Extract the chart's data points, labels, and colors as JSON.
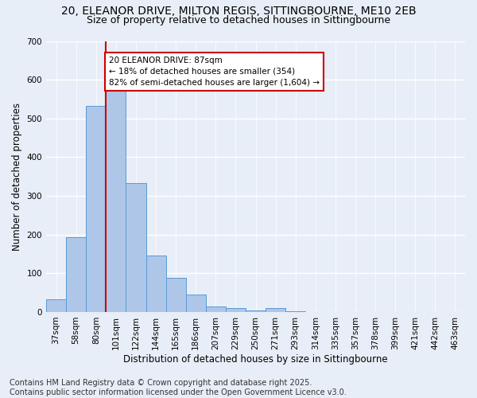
{
  "title1": "20, ELEANOR DRIVE, MILTON REGIS, SITTINGBOURNE, ME10 2EB",
  "title2": "Size of property relative to detached houses in Sittingbourne",
  "xlabel": "Distribution of detached houses by size in Sittingbourne",
  "ylabel": "Number of detached properties",
  "categories": [
    "37sqm",
    "58sqm",
    "80sqm",
    "101sqm",
    "122sqm",
    "144sqm",
    "165sqm",
    "186sqm",
    "207sqm",
    "229sqm",
    "250sqm",
    "271sqm",
    "293sqm",
    "314sqm",
    "335sqm",
    "357sqm",
    "378sqm",
    "399sqm",
    "421sqm",
    "442sqm",
    "463sqm"
  ],
  "values": [
    33,
    193,
    533,
    575,
    333,
    145,
    88,
    45,
    14,
    10,
    4,
    10,
    2,
    0,
    0,
    0,
    0,
    0,
    0,
    0,
    0
  ],
  "bar_color": "#aec6e8",
  "bar_edge_color": "#5b9bd5",
  "vline_color": "#cc0000",
  "vline_x_index": 2.5,
  "annotation_title": "20 ELEANOR DRIVE: 87sqm",
  "annotation_line1": "← 18% of detached houses are smaller (354)",
  "annotation_line2": "82% of semi-detached houses are larger (1,604) →",
  "annotation_box_color": "#ffffff",
  "annotation_box_edge_color": "#cc0000",
  "ylim": [
    0,
    700
  ],
  "yticks": [
    0,
    100,
    200,
    300,
    400,
    500,
    600,
    700
  ],
  "footer1": "Contains HM Land Registry data © Crown copyright and database right 2025.",
  "footer2": "Contains public sector information licensed under the Open Government Licence v3.0.",
  "bg_color": "#e8eef7",
  "grid_color": "#ffffff",
  "title_fontsize": 10,
  "subtitle_fontsize": 9,
  "axis_label_fontsize": 8.5,
  "tick_fontsize": 7.5,
  "annotation_fontsize": 7.5,
  "footer_fontsize": 7
}
